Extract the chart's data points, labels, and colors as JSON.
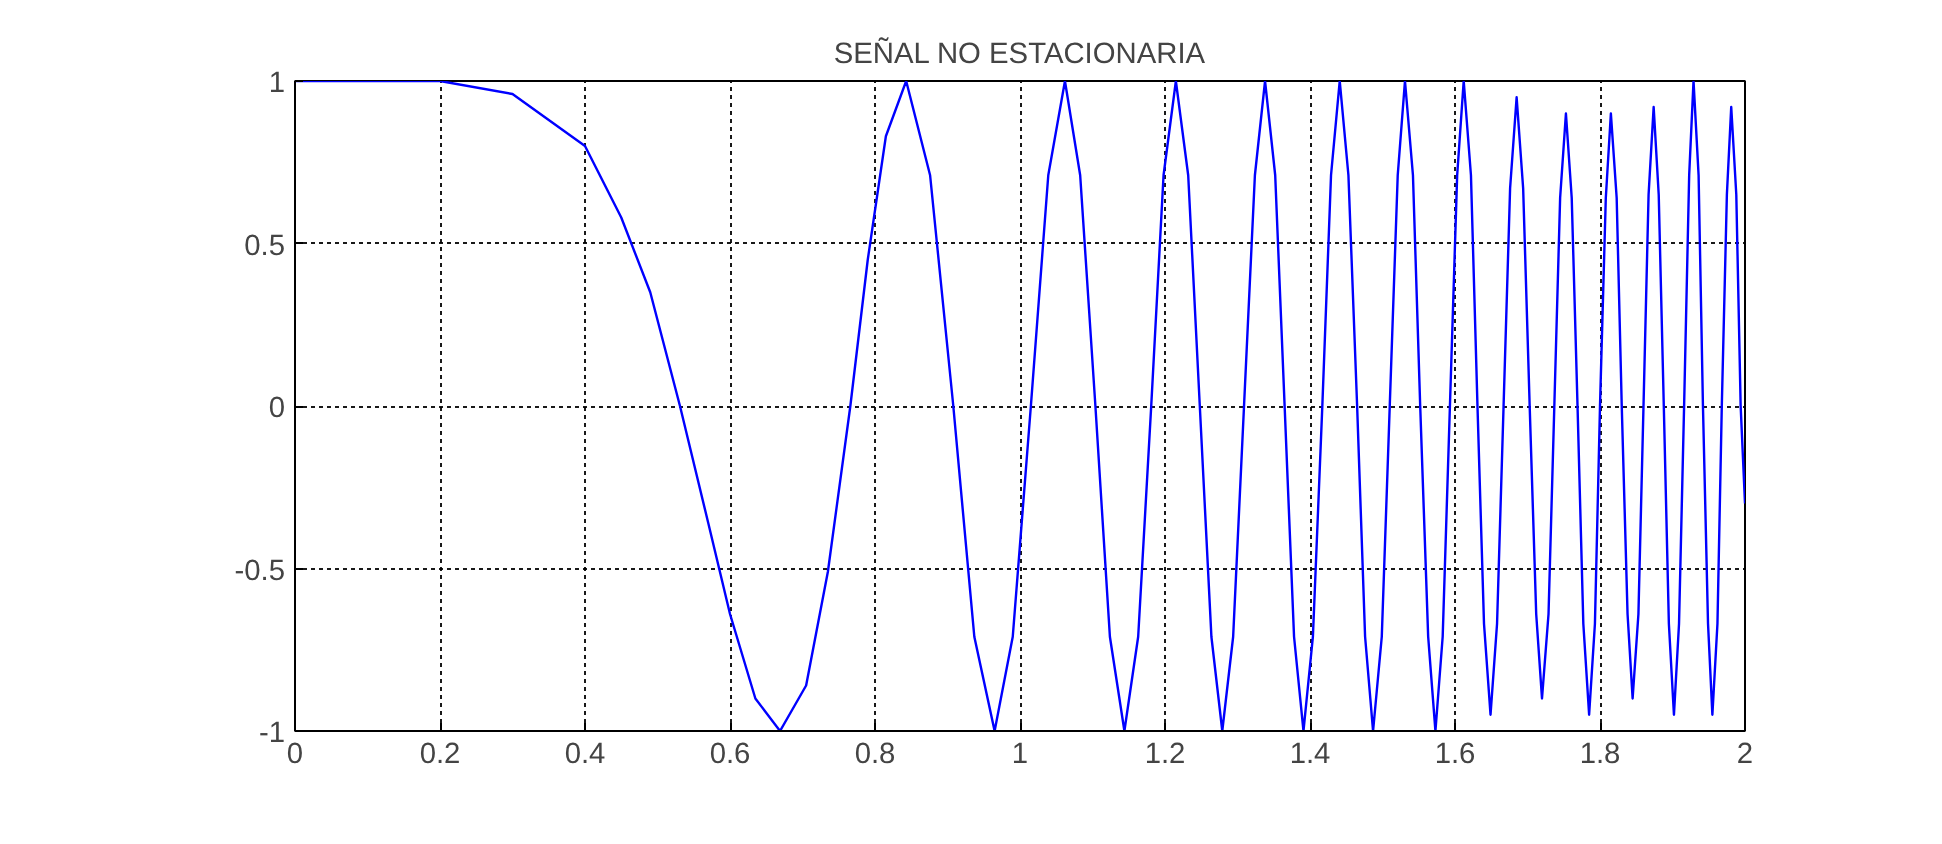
{
  "chart_data": {
    "type": "line",
    "title": "SEÑAL NO ESTACIONARIA",
    "x": [
      0,
      0.2,
      0.3,
      0.4,
      0.45,
      0.49,
      0.531,
      0.57,
      0.6,
      0.635,
      0.669,
      0.705,
      0.735,
      0.766,
      0.79,
      0.815,
      0.843,
      0.876,
      0.908,
      0.937,
      0.965,
      0.99,
      1.015,
      1.039,
      1.062,
      1.083,
      1.104,
      1.124,
      1.144,
      1.163,
      1.181,
      1.198,
      1.215,
      1.232,
      1.248,
      1.264,
      1.279,
      1.294,
      1.309,
      1.324,
      1.338,
      1.352,
      1.365,
      1.378,
      1.391,
      1.404,
      1.417,
      1.429,
      1.441,
      1.453,
      1.465,
      1.476,
      1.487,
      1.499,
      1.51,
      1.521,
      1.531,
      1.542,
      1.552,
      1.563,
      1.573,
      1.583,
      1.593,
      1.603,
      1.612,
      1.622,
      1.631,
      1.64,
      1.649,
      1.658,
      1.667,
      1.676,
      1.685,
      1.694,
      1.703,
      1.712,
      1.72,
      1.729,
      1.737,
      1.745,
      1.753,
      1.761,
      1.769,
      1.777,
      1.785,
      1.793,
      1.8,
      1.808,
      1.815,
      1.823,
      1.83,
      1.838,
      1.845,
      1.853,
      1.86,
      1.867,
      1.874,
      1.881,
      1.888,
      1.895,
      1.902,
      1.909,
      1.916,
      1.923,
      1.929,
      1.936,
      1.942,
      1.949,
      1.955,
      1.962,
      1.968,
      1.975,
      1.981,
      1.988,
      1.994,
      2.0
    ],
    "series": [
      {
        "color": "#0000ff",
        "values": [
          1,
          1,
          0.96,
          0.8,
          0.58,
          0.35,
          0,
          -0.36,
          -0.64,
          -0.9,
          -1,
          -0.86,
          -0.51,
          0,
          0.45,
          0.83,
          1,
          0.71,
          0,
          -0.71,
          -1,
          -0.71,
          0,
          0.71,
          1,
          0.71,
          0,
          -0.71,
          -1,
          -0.71,
          0,
          0.71,
          1,
          0.71,
          0,
          -0.71,
          -1,
          -0.71,
          0,
          0.71,
          1,
          0.71,
          0,
          -0.71,
          -1,
          -0.71,
          0,
          0.71,
          1,
          0.71,
          0,
          -0.71,
          -1,
          -0.71,
          0,
          0.71,
          1,
          0.71,
          0,
          -0.71,
          -1,
          -0.71,
          0,
          0.71,
          1,
          0.71,
          0,
          -0.67,
          -0.95,
          -0.67,
          0,
          0.67,
          0.95,
          0.67,
          0,
          -0.64,
          -0.9,
          -0.64,
          0,
          0.64,
          0.9,
          0.64,
          0,
          -0.67,
          -0.95,
          -0.67,
          0,
          0.64,
          0.9,
          0.64,
          0,
          -0.64,
          -0.9,
          -0.64,
          0,
          0.65,
          0.92,
          0.65,
          0,
          -0.67,
          -0.95,
          -0.67,
          0,
          0.71,
          1,
          0.71,
          0,
          -0.67,
          -0.95,
          -0.67,
          0,
          0.65,
          0.92,
          0.65,
          0,
          -0.3
        ]
      }
    ],
    "xlim": [
      0,
      2
    ],
    "ylim": [
      -1,
      1
    ],
    "xticks": [
      0,
      0.2,
      0.4,
      0.6,
      0.8,
      1,
      1.2,
      1.4,
      1.6,
      1.8,
      2
    ],
    "yticks": [
      -1,
      -0.5,
      0,
      0.5,
      1
    ],
    "grid": true,
    "line_style": "solid",
    "marker": "none"
  }
}
